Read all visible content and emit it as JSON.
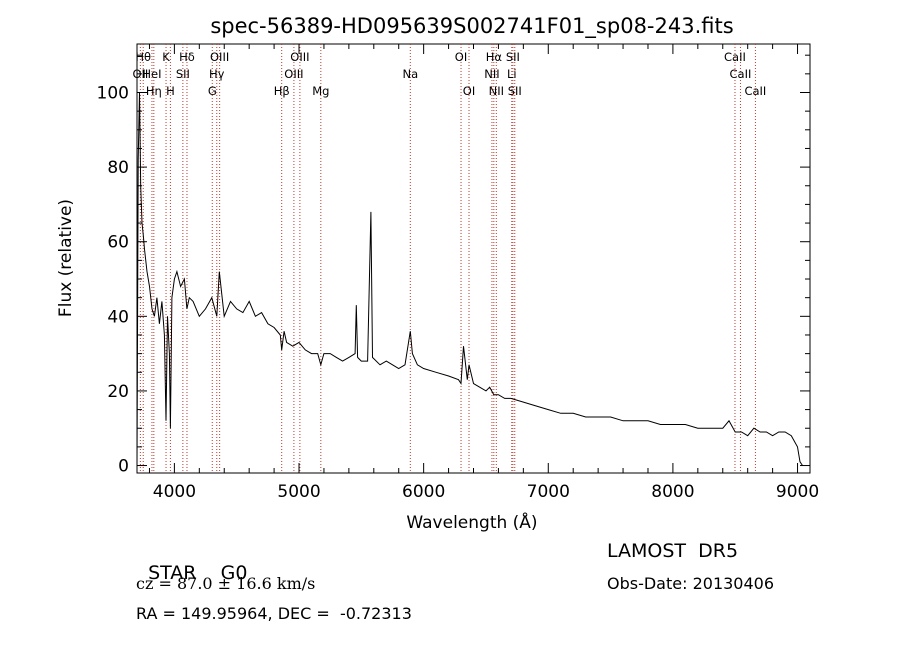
{
  "chart_data": {
    "type": "line",
    "title": "spec-56389-HD095639S002741F01_sp08-243.fits",
    "xlabel": "Wavelength (Å)",
    "ylabel": "Flux (relative)",
    "xlim": [
      3700,
      9100
    ],
    "ylim": [
      -2,
      113
    ],
    "xticks": [
      4000,
      5000,
      6000,
      7000,
      8000,
      9000
    ],
    "yticks": [
      0,
      20,
      40,
      60,
      80,
      100
    ],
    "grid": false,
    "series": [
      {
        "x": [
          3700,
          3710,
          3720,
          3730,
          3740,
          3750,
          3760,
          3780,
          3800,
          3820,
          3840,
          3860,
          3880,
          3900,
          3920,
          3933,
          3945,
          3960,
          3968,
          3980,
          4000,
          4020,
          4050,
          4080,
          4100,
          4120,
          4150,
          4200,
          4250,
          4300,
          4340,
          4360,
          4400,
          4450,
          4500,
          4550,
          4600,
          4650,
          4700,
          4750,
          4800,
          4850,
          4861,
          4880,
          4900,
          4950,
          5000,
          5050,
          5100,
          5150,
          5175,
          5200,
          5250,
          5300,
          5350,
          5400,
          5450,
          5460,
          5470,
          5500,
          5550,
          5577,
          5590,
          5650,
          5700,
          5750,
          5800,
          5850,
          5893,
          5910,
          5950,
          6000,
          6100,
          6200,
          6280,
          6300,
          6320,
          6350,
          6364,
          6400,
          6450,
          6500,
          6530,
          6563,
          6600,
          6650,
          6700,
          6800,
          6900,
          7000,
          7100,
          7200,
          7300,
          7400,
          7500,
          7600,
          7700,
          7800,
          7900,
          8000,
          8100,
          8200,
          8300,
          8400,
          8450,
          8500,
          8550,
          8600,
          8650,
          8700,
          8750,
          8800,
          8850,
          8900,
          8950,
          9000,
          9020,
          9040
        ],
        "y": [
          0,
          82,
          100,
          75,
          65,
          62,
          58,
          52,
          48,
          42,
          40,
          45,
          38,
          44,
          35,
          12,
          40,
          30,
          10,
          45,
          50,
          52,
          48,
          50,
          42,
          45,
          44,
          40,
          42,
          45,
          40,
          52,
          40,
          44,
          42,
          41,
          44,
          40,
          41,
          38,
          37,
          35,
          31,
          36,
          33,
          32,
          33,
          31,
          30,
          30,
          27,
          30,
          30,
          29,
          28,
          29,
          30,
          43,
          29,
          28,
          28,
          68,
          29,
          27,
          28,
          27,
          26,
          27,
          36,
          30,
          27,
          26,
          25,
          24,
          23,
          22,
          32,
          23,
          27,
          22,
          21,
          20,
          21,
          19,
          19,
          18,
          18,
          17,
          16,
          15,
          14,
          14,
          13,
          13,
          13,
          12,
          12,
          12,
          11,
          11,
          11,
          10,
          10,
          10,
          12,
          9,
          9,
          8,
          10,
          9,
          9,
          8,
          9,
          9,
          8,
          5,
          1,
          0
        ]
      }
    ],
    "lines": [
      {
        "wl": 3727,
        "row": 2,
        "label": "OII"
      },
      {
        "wl": 3750,
        "row": 1,
        "label": "Hθ"
      },
      {
        "wl": 3820,
        "row": 2,
        "label": "HeI"
      },
      {
        "wl": 3835,
        "row": 3,
        "label": "Hη"
      },
      {
        "wl": 3933,
        "row": 1,
        "label": "K"
      },
      {
        "wl": 3968,
        "row": 3,
        "label": "H"
      },
      {
        "wl": 4101,
        "row": 1,
        "label": "Hδ"
      },
      {
        "wl": 4068,
        "row": 2,
        "label": "SII"
      },
      {
        "wl": 4304,
        "row": 3,
        "label": "G"
      },
      {
        "wl": 4340,
        "row": 2,
        "label": "Hγ"
      },
      {
        "wl": 4363,
        "row": 1,
        "label": "OIII"
      },
      {
        "wl": 4861,
        "row": 3,
        "label": "Hβ"
      },
      {
        "wl": 4959,
        "row": 2,
        "label": "OIII"
      },
      {
        "wl": 5007,
        "row": 1,
        "label": "OIII"
      },
      {
        "wl": 5175,
        "row": 3,
        "label": "Mg"
      },
      {
        "wl": 5893,
        "row": 2,
        "label": "Na"
      },
      {
        "wl": 6300,
        "row": 1,
        "label": "OI"
      },
      {
        "wl": 6364,
        "row": 3,
        "label": "OI"
      },
      {
        "wl": 6548,
        "row": 2,
        "label": "NII"
      },
      {
        "wl": 6563,
        "row": 1,
        "label": "Hα"
      },
      {
        "wl": 6583,
        "row": 3,
        "label": "NII"
      },
      {
        "wl": 6707,
        "row": 2,
        "label": "Li"
      },
      {
        "wl": 6716,
        "row": 1,
        "label": "SII"
      },
      {
        "wl": 6731,
        "row": 3,
        "label": "SII"
      },
      {
        "wl": 8498,
        "row": 1,
        "label": "CaII"
      },
      {
        "wl": 8542,
        "row": 2,
        "label": "CaII"
      },
      {
        "wl": 8662,
        "row": 3,
        "label": "CaII"
      }
    ]
  },
  "footer": {
    "class_label": "STAR",
    "subclass": "G0",
    "survey": "LAMOST  DR5",
    "cz": "cz = 87.0 ± 16.6 km/s",
    "obs_date": "Obs-Date: 20130406",
    "coords": "RA = 149.95964, DEC =  -0.72313"
  },
  "colors": {
    "line_marker": "#c0392b",
    "spectrum": "#000000",
    "axes": "#000000"
  }
}
